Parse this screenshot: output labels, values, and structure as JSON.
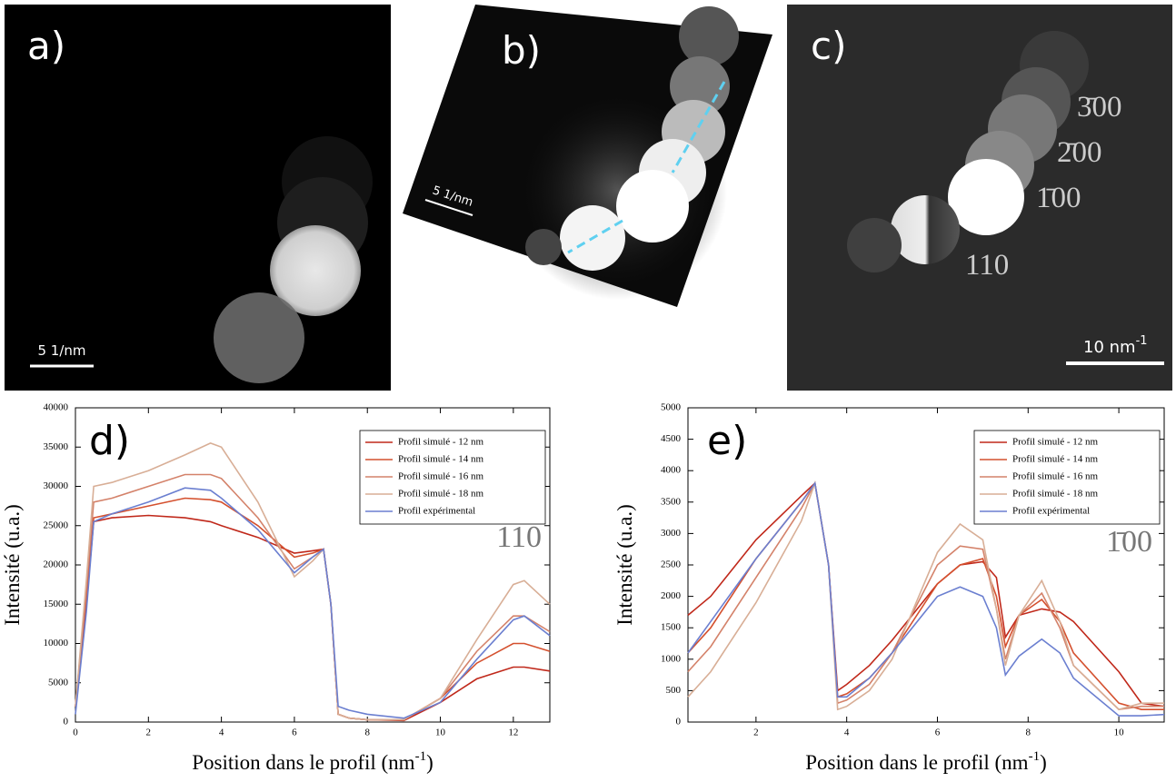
{
  "panels": [
    {
      "label": "a)",
      "scale": "5 1/nm"
    },
    {
      "label": "b)",
      "scale": "5 1/nm"
    },
    {
      "label": "c)",
      "scale": "10 nm",
      "scale_sup": "-1",
      "spots": [
        "3̄00",
        "2̄00",
        "1̄00",
        "110"
      ]
    }
  ],
  "chart_data": [
    {
      "type": "line",
      "annotations": [
        "d)",
        "110"
      ],
      "xlabel": "Position dans le profil (nm",
      "xlabel_sup": "-1",
      "xlabel_end": ")",
      "ylabel": "Intensité (u.a.)",
      "xlim": [
        0,
        13
      ],
      "xticks": [
        0,
        2,
        4,
        6,
        8,
        10,
        12
      ],
      "ylim": [
        0,
        40000
      ],
      "yticks": [
        0,
        5000,
        10000,
        15000,
        20000,
        25000,
        30000,
        35000,
        40000
      ],
      "legend": "upper right",
      "x": [
        0,
        0.3,
        0.5,
        1,
        2,
        3,
        3.7,
        4,
        5,
        6,
        6.5,
        6.8,
        7,
        7.2,
        7.5,
        8,
        9,
        10,
        11,
        12,
        12.3,
        13
      ],
      "series": [
        {
          "name": "Profil simulé - 12 nm",
          "color": "#c0281a",
          "values": [
            2000,
            15000,
            25500,
            26000,
            26300,
            26000,
            25500,
            25000,
            23500,
            21500,
            21800,
            22000,
            15000,
            1000,
            500,
            300,
            200,
            2500,
            5500,
            7000,
            7000,
            6500
          ]
        },
        {
          "name": "Profil simulé - 14 nm",
          "color": "#d4502e",
          "values": [
            2000,
            16000,
            26000,
            26500,
            27500,
            28500,
            28300,
            28000,
            25000,
            21000,
            21500,
            22000,
            15000,
            1000,
            500,
            300,
            300,
            3000,
            7500,
            10000,
            10000,
            9000
          ]
        },
        {
          "name": "Profil simulé - 16 nm",
          "color": "#d4826a",
          "values": [
            2000,
            17000,
            28000,
            28500,
            30000,
            31500,
            31500,
            31000,
            26000,
            19500,
            21000,
            22000,
            15000,
            1000,
            500,
            300,
            300,
            3000,
            9000,
            13500,
            13500,
            11500
          ]
        },
        {
          "name": "Profil simulé - 18 nm",
          "color": "#d8ae96",
          "values": [
            2000,
            18000,
            30000,
            30500,
            32000,
            34000,
            35500,
            35000,
            28000,
            18500,
            20500,
            22000,
            15000,
            1000,
            500,
            300,
            300,
            3000,
            10500,
            17500,
            18000,
            15000
          ]
        },
        {
          "name": "Profil expérimental",
          "color": "#6b7fd0",
          "values": [
            1000,
            14000,
            25500,
            26500,
            28000,
            29800,
            29500,
            28500,
            24500,
            19000,
            21000,
            22000,
            15000,
            2000,
            1500,
            1000,
            500,
            2500,
            8000,
            13000,
            13500,
            11000
          ]
        }
      ]
    },
    {
      "type": "line",
      "annotations": [
        "e)",
        "1̄00"
      ],
      "xlabel": "Position dans le profil (nm",
      "xlabel_sup": "-1",
      "xlabel_end": ")",
      "ylabel": "Intensité (u.a.)",
      "xlim": [
        0.5,
        11
      ],
      "xticks": [
        2,
        4,
        6,
        8,
        10
      ],
      "ylim": [
        0,
        5000
      ],
      "yticks": [
        0,
        500,
        1000,
        1500,
        2000,
        2500,
        3000,
        3500,
        4000,
        4500,
        5000
      ],
      "legend": "upper right",
      "x": [
        0.5,
        1,
        2,
        3,
        3.3,
        3.6,
        3.8,
        4,
        4.5,
        5,
        6,
        6.5,
        7,
        7.3,
        7.5,
        7.8,
        8.3,
        8.7,
        9,
        10,
        10.5,
        11
      ],
      "series": [
        {
          "name": "Profil simulé - 12 nm",
          "color": "#c0281a",
          "values": [
            1700,
            2000,
            2900,
            3600,
            3800,
            2500,
            500,
            600,
            900,
            1300,
            2200,
            2500,
            2550,
            2300,
            1350,
            1700,
            1800,
            1750,
            1600,
            800,
            300,
            250
          ]
        },
        {
          "name": "Profil simulé - 14 nm",
          "color": "#d4502e",
          "values": [
            1100,
            1500,
            2600,
            3500,
            3800,
            2500,
            400,
            450,
            700,
            1100,
            2200,
            2500,
            2600,
            2000,
            1200,
            1700,
            1950,
            1600,
            1100,
            300,
            200,
            200
          ]
        },
        {
          "name": "Profil simulé - 16 nm",
          "color": "#d4826a",
          "values": [
            800,
            1200,
            2300,
            3400,
            3800,
            2500,
            300,
            350,
            600,
            1100,
            2500,
            2800,
            2750,
            1800,
            1000,
            1700,
            2050,
            1500,
            900,
            200,
            250,
            250
          ]
        },
        {
          "name": "Profil simulé - 18 nm",
          "color": "#d8ae96",
          "values": [
            400,
            800,
            1900,
            3200,
            3800,
            2500,
            200,
            250,
            500,
            1000,
            2700,
            3150,
            2900,
            1800,
            900,
            1700,
            2250,
            1600,
            900,
            200,
            300,
            300
          ]
        },
        {
          "name": "Profil expérimental",
          "color": "#6b7fd0",
          "values": [
            1100,
            1600,
            2600,
            3500,
            3800,
            2500,
            400,
            400,
            700,
            1100,
            2000,
            2150,
            2000,
            1500,
            750,
            1050,
            1320,
            1100,
            700,
            100,
            100,
            120
          ]
        }
      ]
    }
  ]
}
